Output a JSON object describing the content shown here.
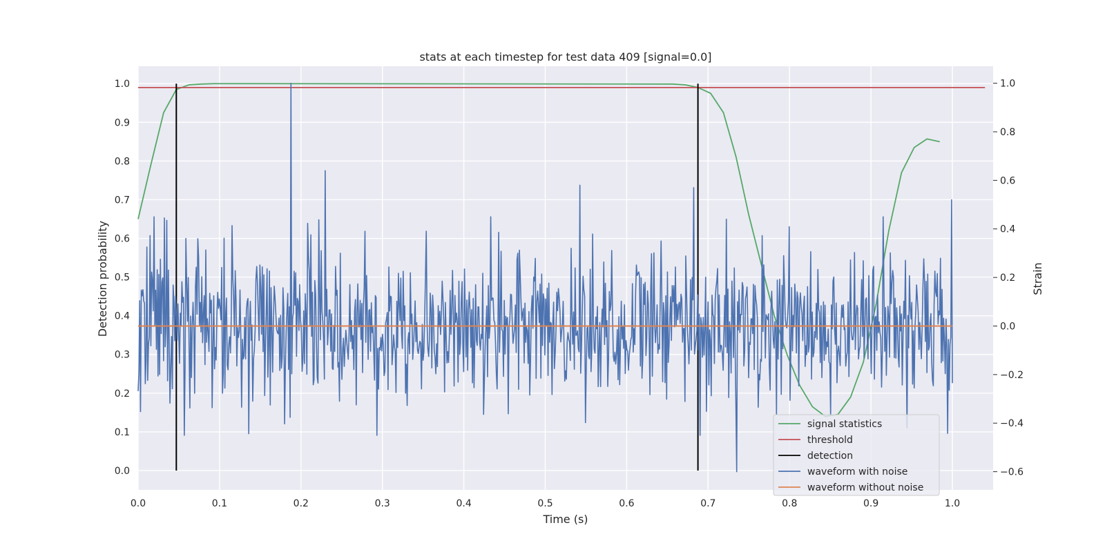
{
  "chart_data": {
    "type": "line",
    "title": "stats at each timestep for test data 409 [signal=0.0]",
    "xlabel": "Time (s)",
    "ylabel": "Detection probability",
    "ylabel_right": "Strain",
    "xlim": [
      0.0,
      1.05
    ],
    "ylim": [
      -0.05,
      1.045
    ],
    "ylim_right": [
      -0.675,
      1.07
    ],
    "xticks": [
      "0.0",
      "0.1",
      "0.2",
      "0.3",
      "0.4",
      "0.5",
      "0.6",
      "0.7",
      "0.8",
      "0.9",
      "1.0"
    ],
    "yticks": [
      "0.0",
      "0.1",
      "0.2",
      "0.3",
      "0.4",
      "0.5",
      "0.6",
      "0.7",
      "0.8",
      "0.9",
      "1.0"
    ],
    "yticks_right": [
      "−0.6",
      "−0.4",
      "−0.2",
      "0.0",
      "0.2",
      "0.4",
      "0.6",
      "0.8",
      "1.0"
    ],
    "grid": true,
    "legend_position": "lower-right",
    "series": [
      {
        "name": "signal statistics",
        "axis": "left",
        "color": "#55a868",
        "x": [
          0.0,
          0.0156,
          0.0313,
          0.0469,
          0.0625,
          0.0781,
          0.0938,
          0.1094,
          0.125,
          0.6563,
          0.6719,
          0.6875,
          0.7031,
          0.7188,
          0.7344,
          0.75,
          0.7656,
          0.7813,
          0.7969,
          0.8125,
          0.8281,
          0.8438,
          0.8594,
          0.875,
          0.8906,
          0.9063,
          0.9219,
          0.9375,
          0.9531,
          0.9688,
          0.9844
        ],
        "y": [
          0.65,
          0.79,
          0.925,
          0.985,
          0.997,
          0.999,
          1.0,
          1.0,
          1.0,
          0.999,
          0.997,
          0.99,
          0.975,
          0.925,
          0.81,
          0.66,
          0.53,
          0.4,
          0.3,
          0.22,
          0.165,
          0.14,
          0.145,
          0.19,
          0.28,
          0.43,
          0.62,
          0.77,
          0.835,
          0.857,
          0.85
        ]
      },
      {
        "name": "threshold",
        "axis": "left",
        "color": "#c44e52",
        "x": [
          0.0,
          1.04
        ],
        "y": [
          0.99,
          0.99
        ]
      },
      {
        "name": "detection",
        "axis": "left",
        "color": "#000000",
        "x": [
          0.0469,
          0.6875
        ],
        "y": [
          0.0,
          1.0
        ]
      },
      {
        "name": "waveform with noise",
        "axis": "right",
        "color": "#4c72b0",
        "n": 1024,
        "x_range": [
          0.0,
          1.0
        ],
        "peaks": [
          [
            0.1875,
            1.0
          ],
          [
            0.2295,
            0.64
          ],
          [
            0.543,
            0.58
          ],
          [
            0.6826,
            0.57
          ],
          [
            0.7354,
            -0.6
          ],
          [
            0.999,
            0.52
          ]
        ],
        "std": 0.16
      },
      {
        "name": "waveform without noise",
        "axis": "right",
        "color": "#dd8452",
        "x": [
          0.0,
          1.0
        ],
        "y": [
          0.0,
          0.0
        ]
      }
    ]
  }
}
